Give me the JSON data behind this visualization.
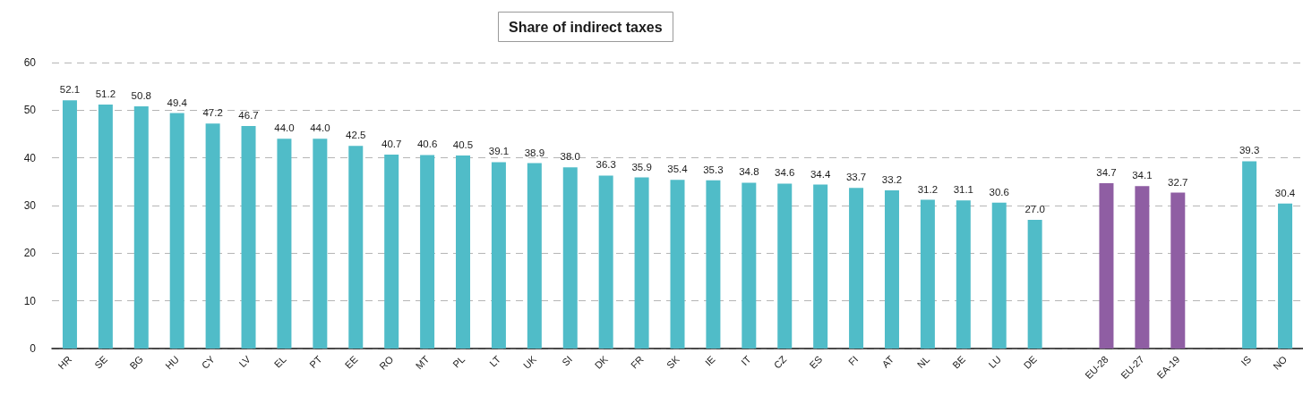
{
  "chart_data": {
    "type": "bar",
    "title": "Share of indirect taxes",
    "categories": [
      "HR",
      "SE",
      "BG",
      "HU",
      "CY",
      "LV",
      "EL",
      "PT",
      "EE",
      "RO",
      "MT",
      "PL",
      "LT",
      "UK",
      "SI",
      "DK",
      "FR",
      "SK",
      "IE",
      "IT",
      "CZ",
      "ES",
      "FI",
      "AT",
      "NL",
      "BE",
      "LU",
      "DE",
      null,
      "EU-28",
      "EU-27",
      "EA-19",
      null,
      "IS",
      "NO"
    ],
    "values": [
      52.1,
      51.2,
      50.8,
      49.4,
      47.2,
      46.7,
      44.0,
      44.0,
      42.5,
      40.7,
      40.6,
      40.5,
      39.1,
      38.9,
      38.0,
      36.3,
      35.9,
      35.4,
      35.3,
      34.8,
      34.6,
      34.4,
      33.7,
      33.2,
      31.2,
      31.1,
      30.6,
      27.0,
      null,
      34.7,
      34.1,
      32.7,
      null,
      39.3,
      30.4
    ],
    "value_labels": [
      "52.1",
      "51.2",
      "50.8",
      "49.4",
      "47.2",
      "46.7",
      "44.0",
      "44.0",
      "42.5",
      "40.7",
      "40.6",
      "40.5",
      "39.1",
      "38.9",
      "38.0",
      "36.3",
      "35.9",
      "35.4",
      "35.3",
      "34.8",
      "34.6",
      "34.4",
      "33.7",
      "33.2",
      "31.2",
      "31.1",
      "30.6",
      "27.0",
      null,
      "34.7",
      "34.1",
      "32.7",
      null,
      "39.3",
      "30.4"
    ],
    "colors": [
      "#50bcc8",
      "#50bcc8",
      "#50bcc8",
      "#50bcc8",
      "#50bcc8",
      "#50bcc8",
      "#50bcc8",
      "#50bcc8",
      "#50bcc8",
      "#50bcc8",
      "#50bcc8",
      "#50bcc8",
      "#50bcc8",
      "#50bcc8",
      "#50bcc8",
      "#50bcc8",
      "#50bcc8",
      "#50bcc8",
      "#50bcc8",
      "#50bcc8",
      "#50bcc8",
      "#50bcc8",
      "#50bcc8",
      "#50bcc8",
      "#50bcc8",
      "#50bcc8",
      "#50bcc8",
      "#50bcc8",
      null,
      "#8f5ea3",
      "#8f5ea3",
      "#8f5ea3",
      null,
      "#50bcc8",
      "#50bcc8"
    ],
    "ylim": [
      0,
      60
    ],
    "yticks": [
      0,
      10,
      20,
      30,
      40,
      50,
      60
    ],
    "grid": "y"
  }
}
